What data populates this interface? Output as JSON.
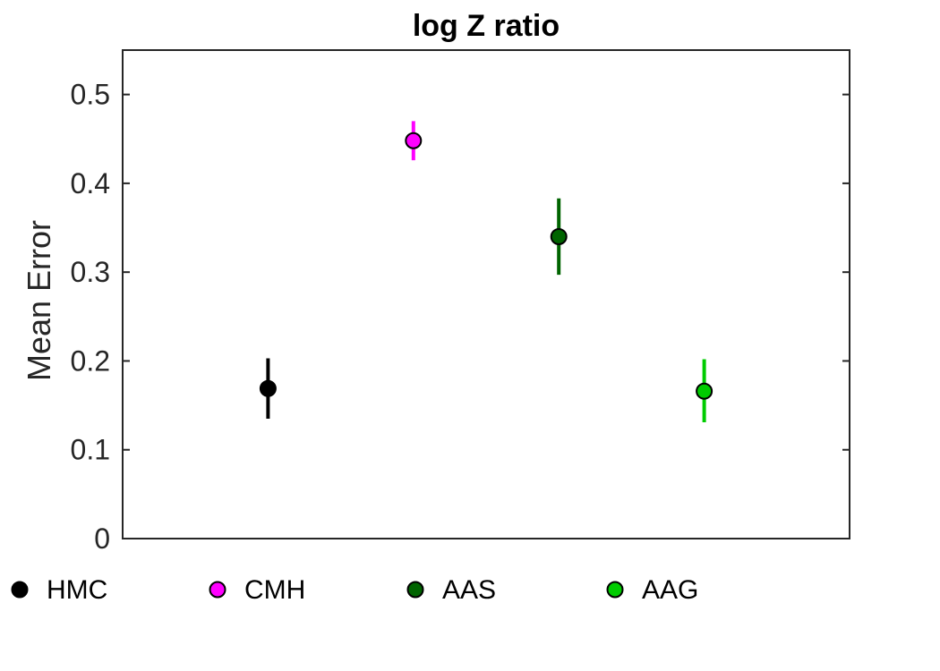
{
  "chart_data": {
    "type": "scatter",
    "title": "log Z ratio",
    "xlabel": "",
    "ylabel": "Mean Error",
    "ylim": [
      0,
      0.55
    ],
    "xlim": [
      0,
      5
    ],
    "yticks": [
      0,
      0.1,
      0.2,
      0.3,
      0.4,
      0.5
    ],
    "yticklabels": [
      "0",
      "0.1",
      "0.2",
      "0.3",
      "0.4",
      "0.5"
    ],
    "grid": false,
    "legend_position": "bottom",
    "series": [
      {
        "name": "HMC",
        "x": 1,
        "y": 0.169,
        "err_low": 0.135,
        "err_high": 0.203,
        "color": "#000000",
        "marker_edge": "#000000"
      },
      {
        "name": "CMH",
        "x": 2,
        "y": 0.448,
        "err_low": 0.426,
        "err_high": 0.47,
        "color": "#ff00ff",
        "marker_edge": "#000000"
      },
      {
        "name": "AAS",
        "x": 3,
        "y": 0.34,
        "err_low": 0.297,
        "err_high": 0.383,
        "color": "#006400",
        "marker_edge": "#000000"
      },
      {
        "name": "AAG",
        "x": 4,
        "y": 0.166,
        "err_low": 0.131,
        "err_high": 0.202,
        "color": "#00cc00",
        "marker_edge": "#000000"
      }
    ]
  }
}
